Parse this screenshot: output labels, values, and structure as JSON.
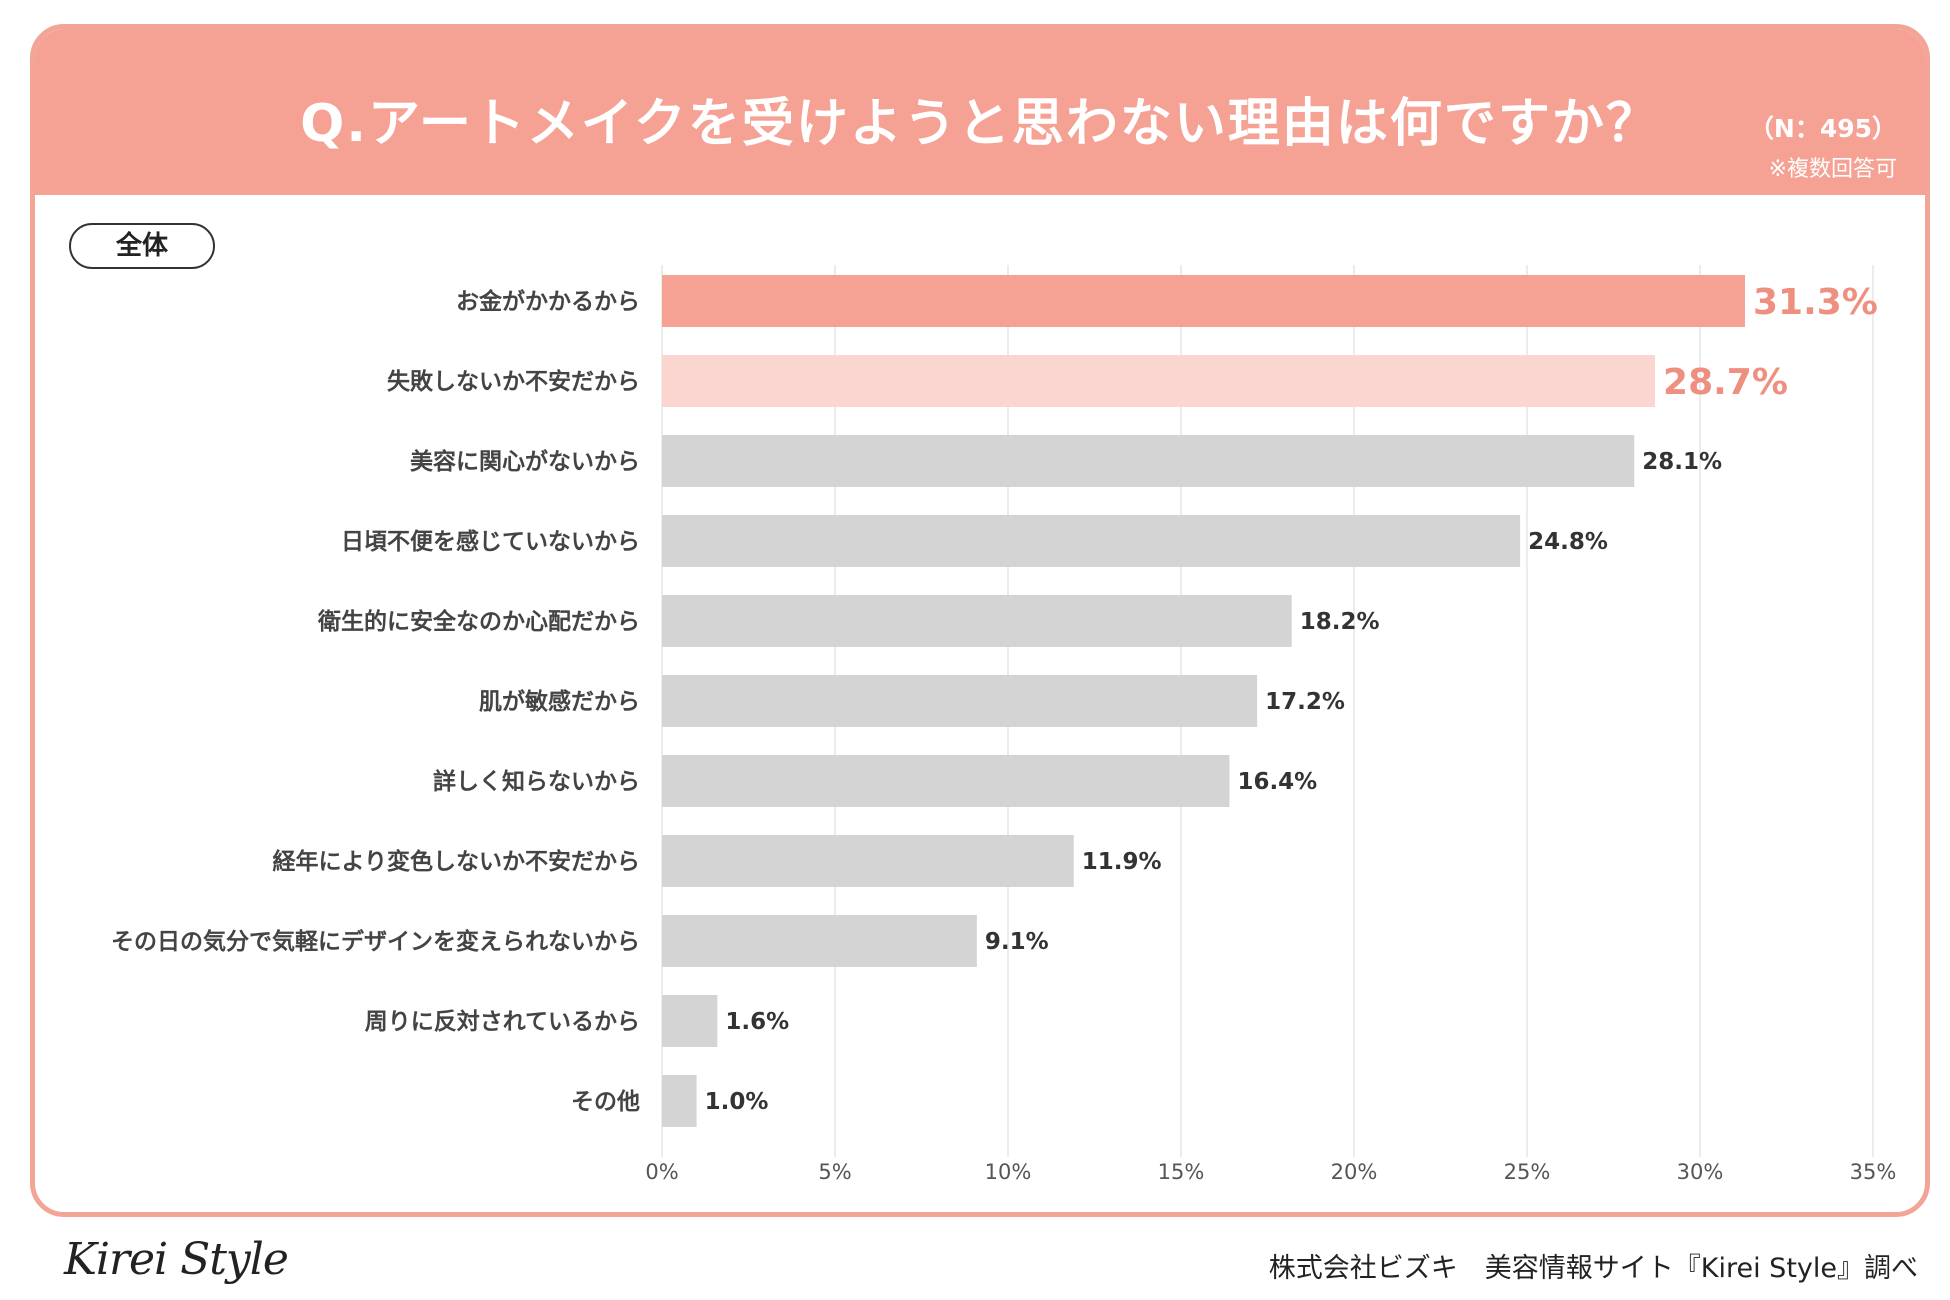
{
  "header": {
    "title": "Q.アートメイクを受けようと思わない理由は何ですか？",
    "n_label": "（N：495）",
    "multi_note": "※複数回答可"
  },
  "group_label": "全体",
  "footer": {
    "logo": "Kirei Style",
    "source": "株式会社ビズキ　美容情報サイト『Kirei Style』調べ"
  },
  "colors": {
    "accent": "#f5a194",
    "accent_light": "#fbd6d0",
    "bar_gray": "#d4d4d4",
    "highlight_text": "#ee8f80"
  },
  "chart_data": {
    "type": "bar",
    "orientation": "horizontal",
    "title": "Q.アートメイクを受けようと思わない理由は何ですか？",
    "categories": [
      "お金がかかるから",
      "失敗しないか不安だから",
      "美容に関心がないから",
      "日頃不便を感じていないから",
      "衛生的に安全なのか心配だから",
      "肌が敏感だから",
      "詳しく知らないから",
      "経年により変色しないか不安だから",
      "その日の気分で気軽にデザインを変えられないから",
      "周りに反対されているから",
      "その他"
    ],
    "values": [
      31.3,
      28.7,
      28.1,
      24.8,
      18.2,
      17.2,
      16.4,
      11.9,
      9.1,
      1.6,
      1.0
    ],
    "value_labels": [
      "31.3%",
      "28.7%",
      "28.1%",
      "24.8%",
      "18.2%",
      "17.2%",
      "16.4%",
      "11.9%",
      "9.1%",
      "1.6%",
      "1.0%"
    ],
    "highlight": [
      "first",
      "second",
      "none",
      "none",
      "none",
      "none",
      "none",
      "none",
      "none",
      "none",
      "none"
    ],
    "xlim": [
      0,
      35
    ],
    "xticks": [
      0,
      5,
      10,
      15,
      20,
      25,
      30,
      35
    ],
    "xtick_labels": [
      "0%",
      "5%",
      "10%",
      "15%",
      "20%",
      "25%",
      "30%",
      "35%"
    ],
    "grid": true,
    "xlabel": "",
    "ylabel": ""
  }
}
